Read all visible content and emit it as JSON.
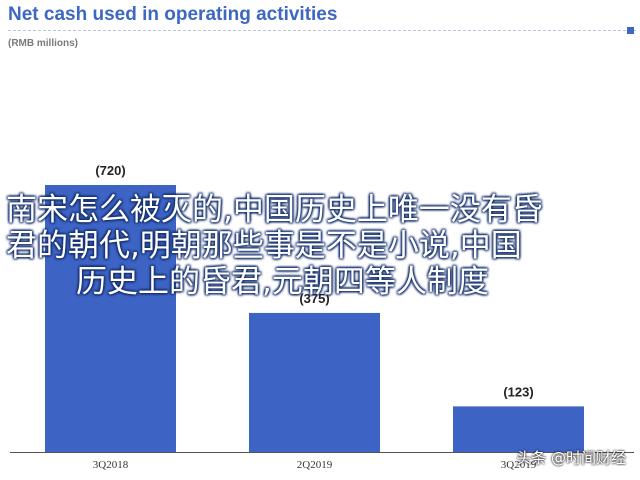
{
  "chart_data": {
    "type": "bar",
    "title": "Net cash used in operating activities",
    "subtitle": "(RMB millions)",
    "categories": [
      "3Q2018",
      "2Q2019",
      "3Q2019"
    ],
    "values": [
      -720,
      -375,
      -123
    ],
    "data_labels": [
      "(720)",
      "(375)",
      "(123)"
    ],
    "xlabel": "",
    "ylabel": "",
    "ylim": [
      0,
      720
    ],
    "grid": false,
    "bar_color": "#3d63c4"
  },
  "overlay": {
    "lines": [
      "南宋怎么被灭的,中国历史上唯一没有昏",
      "君的朝代,明朝那些事是不是小说,中国",
      "历史上的昏君,元朝四等人制度"
    ]
  },
  "watermark": "头条 @时间财经",
  "colors": {
    "title": "#3d67c2",
    "bar": "#3d63c4"
  }
}
